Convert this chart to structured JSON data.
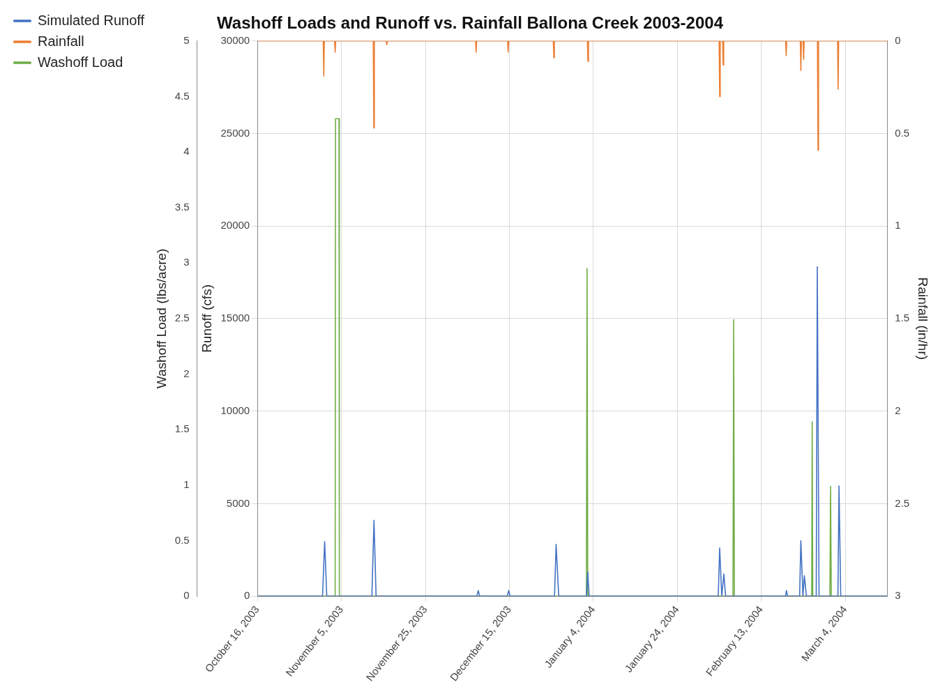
{
  "chart_data": {
    "type": "line",
    "title": "Washoff Loads and Runoff vs. Rainfall Ballona Creek 2003-2004",
    "ylabel": "Runoff (cfs)",
    "y2label": "Rainfall (in/hr)",
    "y3label": "Washoff Load (lbs/acre)",
    "xlim": [
      "2003-10-16",
      "2004-03-14"
    ],
    "xticks": [
      {
        "value": "2003-10-16",
        "label": "October 16, 2003"
      },
      {
        "value": "2003-11-05",
        "label": "November 5, 2003"
      },
      {
        "value": "2003-11-25",
        "label": "November 25, 2003"
      },
      {
        "value": "2003-12-15",
        "label": "December 15, 2003"
      },
      {
        "value": "2004-01-04",
        "label": "January 4, 2004"
      },
      {
        "value": "2004-01-24",
        "label": "January 24, 2004"
      },
      {
        "value": "2004-02-13",
        "label": "February 13, 2004"
      },
      {
        "value": "2004-03-04",
        "label": "March 4, 2004"
      }
    ],
    "ylim": [
      0,
      30000
    ],
    "yticks": [
      0,
      5000,
      10000,
      15000,
      20000,
      25000,
      30000
    ],
    "y2lim": [
      3,
      0
    ],
    "y2ticks": [
      0,
      0.5,
      1,
      1.5,
      2,
      2.5,
      3
    ],
    "y3lim": [
      0,
      5
    ],
    "y3ticks": [
      0,
      0.5,
      1,
      1.5,
      2,
      2.5,
      3,
      3.5,
      4,
      4.5,
      5
    ],
    "grid": true,
    "legend": "top left",
    "marker": "none",
    "line_style": "solid",
    "series": [
      {
        "name": "Simulated Runoff",
        "color": "#4472c4",
        "x": [
          "2003-10-16",
          "2003-10-31T12:00",
          "2003-11-01T00:00",
          "2003-11-01T12:00",
          "2003-11-12T06:00",
          "2003-11-12T18:00",
          "2003-11-13T06:00",
          "2003-12-07T06:00",
          "2003-12-07T14:00",
          "2003-12-07T22:00",
          "2003-12-14T12:00",
          "2003-12-14T20:00",
          "2003-12-15T04:00",
          "2003-12-25T18:00",
          "2003-12-26T03:00",
          "2003-12-26T18:00",
          "2004-01-02T08:00",
          "2004-01-02T16:00",
          "2004-01-03T00:00",
          "2004-02-02T18:00",
          "2004-02-03T02:00",
          "2004-02-03T14:00",
          "2004-02-04T02:00",
          "2004-02-04T12:00",
          "2004-02-18T18:00",
          "2004-02-19T00:00",
          "2004-02-19T06:00",
          "2004-02-22T03:00",
          "2004-02-22T10:00",
          "2004-02-22T22:00",
          "2004-02-23T06:00",
          "2004-02-23T18:00",
          "2004-02-26T02:00",
          "2004-02-26T08:00",
          "2004-02-26T18:00",
          "2004-03-02T06:00",
          "2004-03-02T12:00",
          "2004-03-02T22:00",
          "2004-03-14"
        ],
        "values": [
          0,
          0,
          2950,
          0,
          0,
          4100,
          0,
          0,
          300,
          0,
          0,
          300,
          0,
          0,
          2800,
          0,
          0,
          1300,
          0,
          0,
          2600,
          0,
          1200,
          0,
          0,
          300,
          0,
          0,
          3000,
          0,
          1100,
          0,
          0,
          17800,
          0,
          0,
          5950,
          0,
          0
        ]
      },
      {
        "name": "Rainfall",
        "color": "#ed7d31",
        "axis": "y2",
        "x": [
          "2003-10-16",
          "2003-10-31T16:00",
          "2003-10-31T19:00",
          "2003-10-31T22:00",
          "2003-11-03T09:00",
          "2003-11-03T12:00",
          "2003-11-03T15:00",
          "2003-11-12T14:00",
          "2003-11-12T17:00",
          "2003-11-12T20:00",
          "2003-11-15T16:00",
          "2003-11-15T19:00",
          "2003-11-15T22:00",
          "2003-12-06T23:00",
          "2003-12-07T02:00",
          "2003-12-07T05:00",
          "2003-12-14T14:00",
          "2003-12-14T17:00",
          "2003-12-14T20:00",
          "2003-12-25T11:00",
          "2003-12-25T14:00",
          "2003-12-25T17:00",
          "2004-01-02T14:00",
          "2004-01-02T17:00",
          "2004-01-02T20:00",
          "2004-02-02T23:00",
          "2004-02-03T02:00",
          "2004-02-03T05:00",
          "2004-02-03T19:00",
          "2004-02-03T22:00",
          "2004-02-04T01:00",
          "2004-02-18T19:00",
          "2004-02-18T22:00",
          "2004-02-19T01:00",
          "2004-02-22T07:00",
          "2004-02-22T10:00",
          "2004-02-22T13:00",
          "2004-02-22T23:00",
          "2004-02-23T02:00",
          "2004-02-23T05:00",
          "2004-02-26T09:00",
          "2004-02-26T12:00",
          "2004-02-26T15:00",
          "2004-03-02T04:00",
          "2004-03-02T07:00",
          "2004-03-02T10:00",
          "2004-03-14"
        ],
        "values": [
          0,
          0,
          0.19,
          0,
          0,
          0.06,
          0,
          0,
          0.47,
          0,
          0,
          0.02,
          0,
          0,
          0.06,
          0,
          0,
          0.06,
          0,
          0,
          0.09,
          0,
          0,
          0.11,
          0,
          0,
          0.3,
          0,
          0,
          0.13,
          0,
          0,
          0.08,
          0,
          0,
          0.16,
          0,
          0,
          0.1,
          0,
          0,
          0.59,
          0,
          0,
          0.26,
          0,
          0
        ]
      },
      {
        "name": "Washoff Load",
        "color": "#70ad47",
        "axis": "y3",
        "x": [
          "2003-10-16",
          "2003-11-03T12:00",
          "2003-11-03T14:00",
          "2003-11-04T10:00",
          "2003-11-04T12:00",
          "2004-01-02T08:00",
          "2004-01-02T12:00",
          "2004-01-02T16:00",
          "2004-02-06T06:00",
          "2004-02-06T10:00",
          "2004-02-06T14:00",
          "2004-02-25T00:00",
          "2004-02-25T03:00",
          "2004-02-25T06:00",
          "2004-02-29T08:00",
          "2004-02-29T12:00",
          "2004-02-29T16:00",
          "2004-03-14"
        ],
        "values": [
          0,
          0,
          4.3,
          4.3,
          0,
          0,
          2.95,
          0,
          0,
          2.49,
          0,
          0,
          1.57,
          0,
          0,
          0.99,
          0,
          0
        ]
      }
    ]
  }
}
